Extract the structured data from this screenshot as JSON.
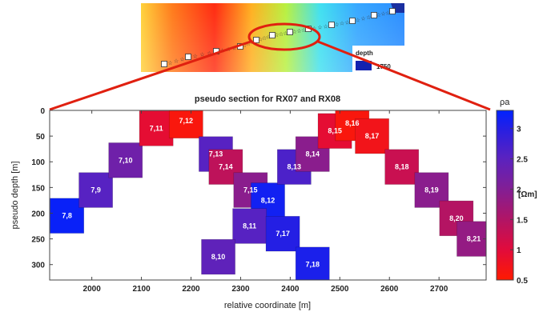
{
  "chart_data": {
    "type": "heatmap",
    "title": "pseudo section for RX07 and RX08",
    "xlabel": "relative coordinate [m]",
    "ylabel": "pseudo depth [m]",
    "xlim": [
      1915,
      2795
    ],
    "ylim": [
      0,
      330
    ],
    "y_inverted": true,
    "xticks": [
      2000,
      2100,
      2200,
      2300,
      2400,
      2500,
      2600,
      2700
    ],
    "yticks": [
      0,
      50,
      100,
      150,
      200,
      250,
      300
    ],
    "cell_width": 68,
    "cell_height": 68,
    "colorbar": {
      "label": "ρa",
      "unit": "[Ωm]",
      "range": [
        0.5,
        3.3
      ],
      "ticks": [
        0.5,
        1,
        1.5,
        2,
        2.5,
        3
      ],
      "tick_labels": [
        "0.5",
        "1",
        "1.5",
        "2",
        "2.5",
        "3"
      ],
      "colors": [
        "#ff1a00",
        "#e10b3c",
        "#b01566",
        "#7f1f98",
        "#5a22c0",
        "#2a1fe0",
        "#0022ff"
      ]
    },
    "cells": [
      {
        "label": "7,8",
        "x": 1950,
        "y": 205,
        "value": 3.2
      },
      {
        "label": "7,9",
        "x": 2008,
        "y": 155,
        "value": 2.4
      },
      {
        "label": "7,10",
        "x": 2068,
        "y": 97,
        "value": 2.1
      },
      {
        "label": "7,11",
        "x": 2130,
        "y": 35,
        "value": 0.9
      },
      {
        "label": "7,12",
        "x": 2190,
        "y": 20,
        "value": 0.6
      },
      {
        "label": "7,13",
        "x": 2250,
        "y": 85,
        "value": 2.4
      },
      {
        "label": "7,14",
        "x": 2270,
        "y": 110,
        "value": 1.3
      },
      {
        "label": "7,15",
        "x": 2320,
        "y": 155,
        "value": 1.8
      },
      {
        "label": "8,12",
        "x": 2355,
        "y": 175,
        "value": 3.1
      },
      {
        "label": "8,11",
        "x": 2318,
        "y": 225,
        "value": 2.4
      },
      {
        "label": "8,10",
        "x": 2255,
        "y": 285,
        "value": 2.3
      },
      {
        "label": "7,17",
        "x": 2385,
        "y": 240,
        "value": 2.9
      },
      {
        "label": "7,18",
        "x": 2445,
        "y": 300,
        "value": 3.0
      },
      {
        "label": "8,13",
        "x": 2408,
        "y": 110,
        "value": 2.5
      },
      {
        "label": "8,14",
        "x": 2445,
        "y": 85,
        "value": 1.8
      },
      {
        "label": "8,15",
        "x": 2490,
        "y": 40,
        "value": 0.9
      },
      {
        "label": "8,16",
        "x": 2525,
        "y": 25,
        "value": 0.6
      },
      {
        "label": "8,17",
        "x": 2565,
        "y": 50,
        "value": 0.7
      },
      {
        "label": "8,18",
        "x": 2625,
        "y": 110,
        "value": 1.2
      },
      {
        "label": "8,19",
        "x": 2685,
        "y": 155,
        "value": 1.8
      },
      {
        "label": "8,20",
        "x": 2735,
        "y": 210,
        "value": 1.4
      },
      {
        "label": "8,21",
        "x": 2770,
        "y": 250,
        "value": 1.7
      }
    ]
  },
  "inset_map": {
    "legend_title": "depth",
    "legend_value": "1750",
    "colors": [
      "#2030d0",
      "#3fa0ff",
      "#60e0f0",
      "#a0f060",
      "#ffe020",
      "#ff8020",
      "#ff2010"
    ]
  }
}
